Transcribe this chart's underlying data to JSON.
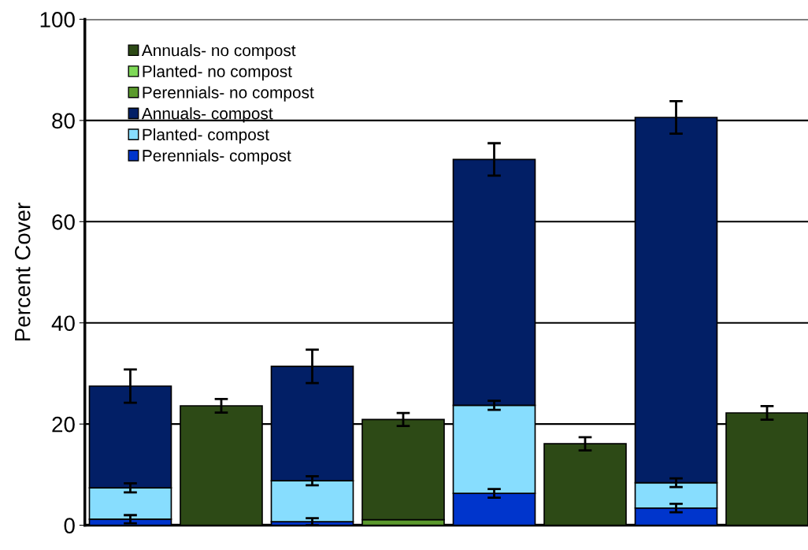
{
  "chart_data": {
    "type": "bar",
    "stacked": true,
    "ylabel": "Percent Cover",
    "categories": [
      null,
      null,
      null,
      null,
      null,
      null,
      null,
      null
    ],
    "series": [
      {
        "name": "Perennials- compost",
        "color": "#0035cc",
        "values": [
          1.2,
          null,
          0.7,
          null,
          6.3,
          null,
          3.4,
          null
        ],
        "errors": [
          0.8,
          null,
          0.7,
          null,
          0.85,
          null,
          0.85,
          null
        ]
      },
      {
        "name": "Planted- compost",
        "color": "#87ddfe",
        "values": [
          6.2,
          null,
          8.1,
          null,
          17.4,
          null,
          5.0,
          null
        ],
        "errors": [
          0.9,
          null,
          0.9,
          null,
          0.9,
          null,
          0.85,
          null
        ]
      },
      {
        "name": "Annuals- compost",
        "color": "#021f66",
        "values": [
          20.1,
          null,
          22.6,
          null,
          48.6,
          null,
          72.2,
          null
        ],
        "errors": [
          3.3,
          null,
          3.3,
          null,
          3.2,
          null,
          3.2,
          null
        ]
      },
      {
        "name": "Perennials- no compost",
        "color": "#5b9a2d",
        "values": [
          null,
          0,
          null,
          1.1,
          null,
          0,
          null,
          0
        ]
      },
      {
        "name": "Planted- no compost",
        "color": "#7ed957",
        "values": [
          null,
          0,
          null,
          0,
          null,
          0,
          null,
          0
        ]
      },
      {
        "name": "Annuals- no compost",
        "color": "#2d4a16",
        "values": [
          null,
          23.6,
          null,
          19.8,
          null,
          16.1,
          null,
          22.2
        ],
        "errors": [
          null,
          1.35,
          null,
          1.3,
          null,
          1.3,
          null,
          1.35
        ]
      }
    ],
    "ylim": [
      0,
      100
    ],
    "yticks": [
      0,
      20,
      40,
      60,
      80,
      100
    ],
    "grid": "y",
    "legend": "top left",
    "tick_labels": "y"
  }
}
